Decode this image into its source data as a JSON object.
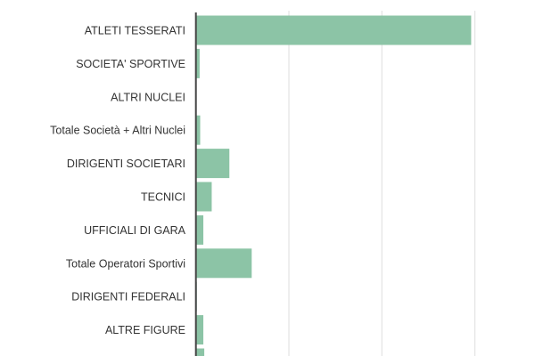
{
  "chart_data": {
    "type": "bar",
    "orientation": "horizontal",
    "title": "",
    "xlabel": "",
    "ylabel": "",
    "categories": [
      "ATLETI TESSERATI",
      "SOCIETA' SPORTIVE",
      "ALTRI NUCLEI",
      "Totale Società + Altri Nuclei",
      "DIRIGENTI SOCIETARI",
      "TECNICI",
      "UFFICIALI DI GARA",
      "Totale Operatori Sportivi",
      "DIRIGENTI FEDERALI",
      "ALTRE FIGURE",
      ""
    ],
    "values": [
      2.96,
      0.04,
      0,
      0.046,
      0.36,
      0.17,
      0.08,
      0.6,
      0.01,
      0.08,
      0.09
    ],
    "value_units": "relative (1 = first gridline; tick labels not visible)",
    "xlim": [
      0,
      3.65
    ],
    "gridlines": [
      1,
      2,
      3
    ],
    "grid": true,
    "legend": "none",
    "colors": {
      "bar": "#8cc4a6",
      "grid": "#e3e3e3",
      "axis": "#444444",
      "label": "#333333"
    }
  }
}
